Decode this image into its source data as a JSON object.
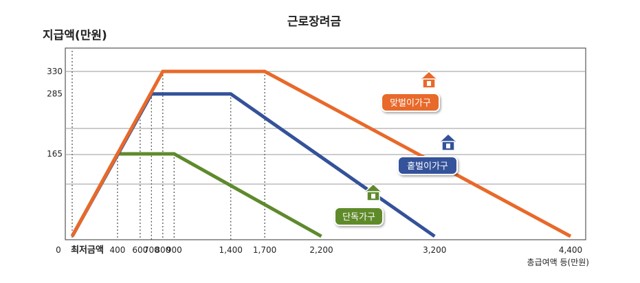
{
  "chart_data": {
    "type": "line",
    "title": "근로장려금",
    "ylabel": "지급액(만원)",
    "xlabel": "총급여액 등(만원)",
    "origin_label": "0",
    "x_min_label": "최저금액",
    "xlim": [
      0,
      4400
    ],
    "ylim": [
      0,
      330
    ],
    "x_ticks": [
      {
        "value": 400,
        "label": "400"
      },
      {
        "value": 600,
        "label": "600"
      },
      {
        "value": 700,
        "label": "700"
      },
      {
        "value": 800,
        "label": "800"
      },
      {
        "value": 900,
        "label": "900"
      },
      {
        "value": 1400,
        "label": "1,400"
      },
      {
        "value": 1700,
        "label": "1,700"
      },
      {
        "value": 2200,
        "label": "2,200"
      },
      {
        "value": 3200,
        "label": "3,200"
      },
      {
        "value": 4400,
        "label": "4,400"
      }
    ],
    "y_ticks": [
      {
        "value": 165,
        "label": "165"
      },
      {
        "value": 285,
        "label": "285"
      },
      {
        "value": 330,
        "label": "330"
      }
    ],
    "series": [
      {
        "name": "맞벌이가구",
        "color": "#e8692a",
        "icon": "house-icon",
        "points": [
          [
            0,
            0
          ],
          [
            800,
            330
          ],
          [
            1700,
            330
          ],
          [
            4400,
            0
          ]
        ]
      },
      {
        "name": "홑벌이가구",
        "color": "#34529a",
        "icon": "house-icon",
        "points": [
          [
            0,
            0
          ],
          [
            700,
            285
          ],
          [
            1400,
            285
          ],
          [
            3200,
            0
          ]
        ]
      },
      {
        "name": "단독가구",
        "color": "#5e8a2c",
        "icon": "house-icon",
        "points": [
          [
            0,
            0
          ],
          [
            400,
            165
          ],
          [
            900,
            165
          ],
          [
            2200,
            0
          ]
        ]
      }
    ],
    "grid": true
  }
}
